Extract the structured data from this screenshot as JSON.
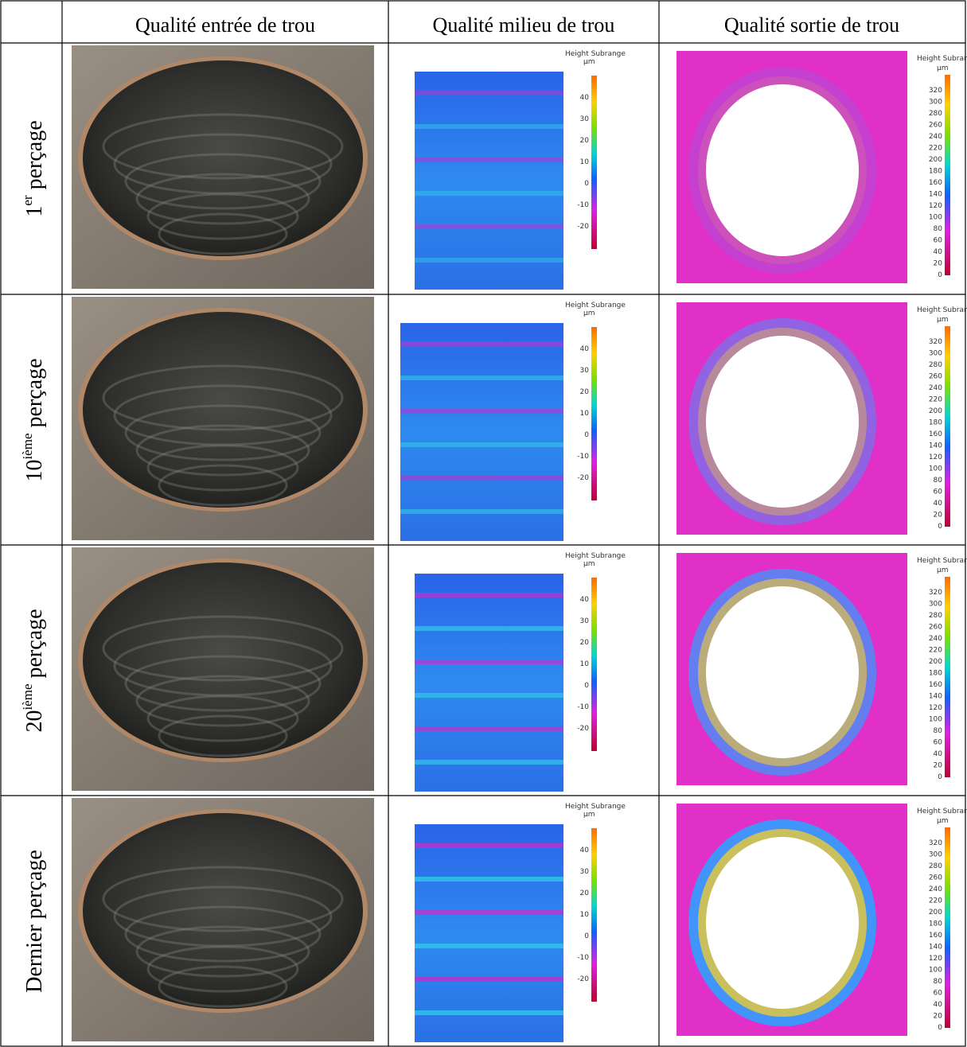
{
  "header": {
    "columns": [
      "Qualité entrée de trou",
      "Qualité milieu de trou",
      "Qualité sortie de trou"
    ]
  },
  "rows": [
    {
      "label": {
        "number": "1",
        "sup": "er",
        "text": "perçage"
      }
    },
    {
      "label": {
        "number": "10",
        "sup": "ième",
        "text": "perçage"
      }
    },
    {
      "label": {
        "number": "20",
        "sup": "ième",
        "text": "perçage"
      }
    },
    {
      "label": {
        "text": "Dernier perçage"
      }
    }
  ],
  "colorbar_middle": {
    "title": "Height Subrange",
    "unit": "µm",
    "ticks": [
      40,
      30,
      20,
      10,
      0,
      -10,
      -20
    ]
  },
  "colorbar_exit": {
    "title": "Height Subrange",
    "unit": "µm",
    "ticks": [
      320,
      300,
      280,
      260,
      240,
      220,
      200,
      180,
      160,
      140,
      120,
      100,
      80,
      60,
      40,
      20,
      0
    ]
  }
}
